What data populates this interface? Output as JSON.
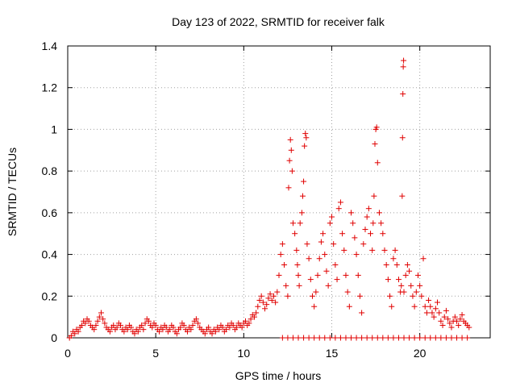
{
  "chart_data": {
    "type": "scatter",
    "title": "Day 123 of 2022, SRMTID for receiver falk",
    "xlabel": "GPS time / hours",
    "ylabel": "SRMTID / TECUs",
    "xlim": [
      0,
      24
    ],
    "ylim": [
      0,
      1.4
    ],
    "xticks": [
      0,
      5,
      10,
      15,
      20
    ],
    "yticks": [
      0,
      0.2,
      0.4,
      0.6,
      0.8,
      1,
      1.2,
      1.4
    ],
    "ytick_labels": [
      "0",
      "0.2",
      "0.4",
      "0.6",
      "0.8",
      "1",
      "1.2",
      "1.4"
    ],
    "grid": true,
    "marker": "+",
    "color": "#e00000",
    "series": [
      {
        "name": "SRMTID",
        "points": [
          [
            0.1,
            0.0
          ],
          [
            0.2,
            0.01
          ],
          [
            0.3,
            0.03
          ],
          [
            0.4,
            0.02
          ],
          [
            0.5,
            0.04
          ],
          [
            0.6,
            0.03
          ],
          [
            0.7,
            0.05
          ],
          [
            0.8,
            0.06
          ],
          [
            0.9,
            0.08
          ],
          [
            1.0,
            0.07
          ],
          [
            1.1,
            0.09
          ],
          [
            1.2,
            0.08
          ],
          [
            1.3,
            0.06
          ],
          [
            1.4,
            0.05
          ],
          [
            1.5,
            0.04
          ],
          [
            1.6,
            0.06
          ],
          [
            1.7,
            0.08
          ],
          [
            1.8,
            0.1
          ],
          [
            1.9,
            0.12
          ],
          [
            2.0,
            0.09
          ],
          [
            2.1,
            0.07
          ],
          [
            2.2,
            0.05
          ],
          [
            2.3,
            0.04
          ],
          [
            2.4,
            0.03
          ],
          [
            2.5,
            0.05
          ],
          [
            2.6,
            0.06
          ],
          [
            2.7,
            0.04
          ],
          [
            2.8,
            0.05
          ],
          [
            2.9,
            0.07
          ],
          [
            3.0,
            0.06
          ],
          [
            3.1,
            0.04
          ],
          [
            3.2,
            0.03
          ],
          [
            3.3,
            0.05
          ],
          [
            3.4,
            0.04
          ],
          [
            3.5,
            0.06
          ],
          [
            3.6,
            0.05
          ],
          [
            3.7,
            0.03
          ],
          [
            3.8,
            0.02
          ],
          [
            3.9,
            0.04
          ],
          [
            4.0,
            0.03
          ],
          [
            4.1,
            0.05
          ],
          [
            4.2,
            0.06
          ],
          [
            4.3,
            0.04
          ],
          [
            4.4,
            0.07
          ],
          [
            4.5,
            0.09
          ],
          [
            4.6,
            0.08
          ],
          [
            4.7,
            0.06
          ],
          [
            4.8,
            0.05
          ],
          [
            4.9,
            0.07
          ],
          [
            5.0,
            0.06
          ],
          [
            5.1,
            0.04
          ],
          [
            5.2,
            0.03
          ],
          [
            5.3,
            0.05
          ],
          [
            5.4,
            0.04
          ],
          [
            5.5,
            0.06
          ],
          [
            5.6,
            0.05
          ],
          [
            5.7,
            0.03
          ],
          [
            5.8,
            0.04
          ],
          [
            5.9,
            0.06
          ],
          [
            6.0,
            0.05
          ],
          [
            6.1,
            0.03
          ],
          [
            6.2,
            0.02
          ],
          [
            6.3,
            0.04
          ],
          [
            6.4,
            0.05
          ],
          [
            6.5,
            0.07
          ],
          [
            6.6,
            0.06
          ],
          [
            6.7,
            0.04
          ],
          [
            6.8,
            0.03
          ],
          [
            6.9,
            0.05
          ],
          [
            7.0,
            0.04
          ],
          [
            7.1,
            0.06
          ],
          [
            7.2,
            0.08
          ],
          [
            7.3,
            0.09
          ],
          [
            7.4,
            0.07
          ],
          [
            7.5,
            0.05
          ],
          [
            7.6,
            0.04
          ],
          [
            7.7,
            0.03
          ],
          [
            7.8,
            0.02
          ],
          [
            7.9,
            0.04
          ],
          [
            8.0,
            0.05
          ],
          [
            8.1,
            0.03
          ],
          [
            8.2,
            0.02
          ],
          [
            8.3,
            0.04
          ],
          [
            8.4,
            0.03
          ],
          [
            8.5,
            0.05
          ],
          [
            8.6,
            0.04
          ],
          [
            8.7,
            0.06
          ],
          [
            8.8,
            0.05
          ],
          [
            8.9,
            0.03
          ],
          [
            9.0,
            0.04
          ],
          [
            9.1,
            0.06
          ],
          [
            9.2,
            0.05
          ],
          [
            9.3,
            0.07
          ],
          [
            9.4,
            0.06
          ],
          [
            9.5,
            0.04
          ],
          [
            9.6,
            0.05
          ],
          [
            9.7,
            0.07
          ],
          [
            9.8,
            0.06
          ],
          [
            9.9,
            0.05
          ],
          [
            10.0,
            0.07
          ],
          [
            10.1,
            0.08
          ],
          [
            10.2,
            0.06
          ],
          [
            10.3,
            0.07
          ],
          [
            10.4,
            0.09
          ],
          [
            10.5,
            0.11
          ],
          [
            10.6,
            0.1
          ],
          [
            10.7,
            0.12
          ],
          [
            10.8,
            0.15
          ],
          [
            10.9,
            0.18
          ],
          [
            11.0,
            0.2
          ],
          [
            11.1,
            0.17
          ],
          [
            11.2,
            0.14
          ],
          [
            11.3,
            0.16
          ],
          [
            11.4,
            0.19
          ],
          [
            11.5,
            0.21
          ],
          [
            11.6,
            0.18
          ],
          [
            11.7,
            0.2
          ],
          [
            11.8,
            0.17
          ],
          [
            11.9,
            0.22
          ],
          [
            12.0,
            0.3
          ],
          [
            12.1,
            0.4
          ],
          [
            12.2,
            0.45
          ],
          [
            12.3,
            0.35
          ],
          [
            12.4,
            0.25
          ],
          [
            12.5,
            0.2
          ],
          [
            12.55,
            0.72
          ],
          [
            12.6,
            0.85
          ],
          [
            12.65,
            0.95
          ],
          [
            12.7,
            0.9
          ],
          [
            12.75,
            0.8
          ],
          [
            12.8,
            0.55
          ],
          [
            12.9,
            0.5
          ],
          [
            13.0,
            0.42
          ],
          [
            13.05,
            0.35
          ],
          [
            13.1,
            0.3
          ],
          [
            13.15,
            0.25
          ],
          [
            13.2,
            0.55
          ],
          [
            13.3,
            0.6
          ],
          [
            13.35,
            0.68
          ],
          [
            13.4,
            0.75
          ],
          [
            13.45,
            0.92
          ],
          [
            13.5,
            0.98
          ],
          [
            13.55,
            0.96
          ],
          [
            13.6,
            0.45
          ],
          [
            13.7,
            0.38
          ],
          [
            13.8,
            0.28
          ],
          [
            13.9,
            0.2
          ],
          [
            14.0,
            0.15
          ],
          [
            14.1,
            0.22
          ],
          [
            14.2,
            0.3
          ],
          [
            14.3,
            0.38
          ],
          [
            14.4,
            0.46
          ],
          [
            14.5,
            0.5
          ],
          [
            14.6,
            0.4
          ],
          [
            14.7,
            0.32
          ],
          [
            14.8,
            0.25
          ],
          [
            14.9,
            0.55
          ],
          [
            15.0,
            0.58
          ],
          [
            15.1,
            0.45
          ],
          [
            15.2,
            0.35
          ],
          [
            15.3,
            0.28
          ],
          [
            15.4,
            0.62
          ],
          [
            15.5,
            0.65
          ],
          [
            15.6,
            0.5
          ],
          [
            15.7,
            0.42
          ],
          [
            15.8,
            0.3
          ],
          [
            15.9,
            0.22
          ],
          [
            16.0,
            0.15
          ],
          [
            16.1,
            0.6
          ],
          [
            16.2,
            0.55
          ],
          [
            16.3,
            0.48
          ],
          [
            16.4,
            0.4
          ],
          [
            16.5,
            0.3
          ],
          [
            16.6,
            0.2
          ],
          [
            16.7,
            0.12
          ],
          [
            16.8,
            0.45
          ],
          [
            16.9,
            0.52
          ],
          [
            17.0,
            0.58
          ],
          [
            17.1,
            0.62
          ],
          [
            17.2,
            0.5
          ],
          [
            17.3,
            0.42
          ],
          [
            17.35,
            0.55
          ],
          [
            17.4,
            0.68
          ],
          [
            17.45,
            0.93
          ],
          [
            17.5,
            1.0
          ],
          [
            17.55,
            1.01
          ],
          [
            17.6,
            0.84
          ],
          [
            17.7,
            0.6
          ],
          [
            17.8,
            0.55
          ],
          [
            17.9,
            0.5
          ],
          [
            18.0,
            0.42
          ],
          [
            18.1,
            0.35
          ],
          [
            18.2,
            0.28
          ],
          [
            18.3,
            0.2
          ],
          [
            18.4,
            0.15
          ],
          [
            18.5,
            0.38
          ],
          [
            18.6,
            0.42
          ],
          [
            18.7,
            0.35
          ],
          [
            18.8,
            0.28
          ],
          [
            18.9,
            0.22
          ],
          [
            18.95,
            0.25
          ],
          [
            19.0,
            0.68
          ],
          [
            19.02,
            0.96
          ],
          [
            19.04,
            1.17
          ],
          [
            19.06,
            1.3
          ],
          [
            19.08,
            1.33
          ],
          [
            19.1,
            0.22
          ],
          [
            19.2,
            0.3
          ],
          [
            19.3,
            0.35
          ],
          [
            19.4,
            0.32
          ],
          [
            19.5,
            0.25
          ],
          [
            19.6,
            0.2
          ],
          [
            19.7,
            0.15
          ],
          [
            19.8,
            0.22
          ],
          [
            19.9,
            0.3
          ],
          [
            20.0,
            0.25
          ],
          [
            20.1,
            0.2
          ],
          [
            20.2,
            0.38
          ],
          [
            20.3,
            0.15
          ],
          [
            20.4,
            0.12
          ],
          [
            20.5,
            0.18
          ],
          [
            20.6,
            0.15
          ],
          [
            20.7,
            0.12
          ],
          [
            20.8,
            0.1
          ],
          [
            20.9,
            0.14
          ],
          [
            21.0,
            0.17
          ],
          [
            21.1,
            0.12
          ],
          [
            21.2,
            0.08
          ],
          [
            21.3,
            0.06
          ],
          [
            21.4,
            0.1
          ],
          [
            21.5,
            0.13
          ],
          [
            21.6,
            0.09
          ],
          [
            21.7,
            0.07
          ],
          [
            21.8,
            0.05
          ],
          [
            21.9,
            0.08
          ],
          [
            22.0,
            0.1
          ],
          [
            22.1,
            0.08
          ],
          [
            22.2,
            0.06
          ],
          [
            22.3,
            0.09
          ],
          [
            22.4,
            0.11
          ],
          [
            22.5,
            0.08
          ],
          [
            22.6,
            0.07
          ],
          [
            22.7,
            0.06
          ],
          [
            22.8,
            0.05
          ],
          [
            12.2,
            0.0
          ],
          [
            12.5,
            0.0
          ],
          [
            12.8,
            0.0
          ],
          [
            13.1,
            0.0
          ],
          [
            13.4,
            0.0
          ],
          [
            13.7,
            0.0
          ],
          [
            14.0,
            0.0
          ],
          [
            14.3,
            0.0
          ],
          [
            14.6,
            0.0
          ],
          [
            14.9,
            0.0
          ],
          [
            15.2,
            0.0
          ],
          [
            15.5,
            0.0
          ],
          [
            15.8,
            0.0
          ],
          [
            16.1,
            0.0
          ],
          [
            16.4,
            0.0
          ],
          [
            16.7,
            0.0
          ],
          [
            17.0,
            0.0
          ],
          [
            17.3,
            0.0
          ],
          [
            17.6,
            0.0
          ],
          [
            17.9,
            0.0
          ],
          [
            18.2,
            0.0
          ],
          [
            18.5,
            0.0
          ],
          [
            18.8,
            0.0
          ],
          [
            19.1,
            0.0
          ],
          [
            19.4,
            0.0
          ],
          [
            19.7,
            0.0
          ],
          [
            20.0,
            0.0
          ],
          [
            20.3,
            0.0
          ],
          [
            20.6,
            0.0
          ],
          [
            20.9,
            0.0
          ],
          [
            21.2,
            0.0
          ],
          [
            21.5,
            0.0
          ],
          [
            21.8,
            0.0
          ],
          [
            22.1,
            0.0
          ],
          [
            22.4,
            0.0
          ],
          [
            22.7,
            0.0
          ]
        ]
      }
    ]
  }
}
